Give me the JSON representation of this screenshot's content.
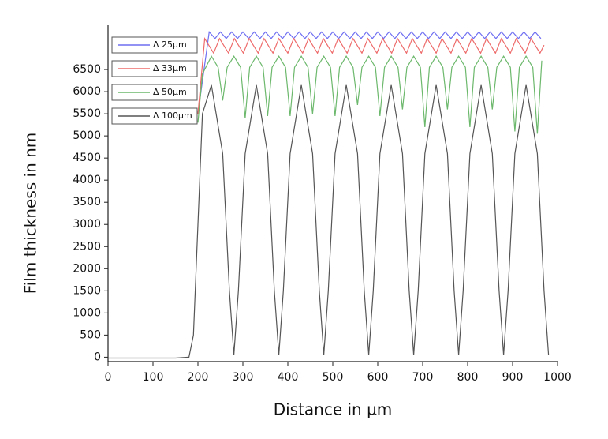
{
  "chart_data": {
    "type": "line",
    "xlabel": "Distance in µm",
    "ylabel": "Film thickness in nm",
    "xlim": [
      0,
      1000
    ],
    "xticks": [
      0,
      100,
      200,
      300,
      400,
      500,
      600,
      700,
      800,
      900,
      1000
    ],
    "ylim": [
      -100,
      7500
    ],
    "yticks": [
      0,
      500,
      1000,
      1500,
      2000,
      2500,
      3000,
      3500,
      4000,
      4500,
      5000,
      5500,
      6000,
      6500
    ],
    "legend": "upper left",
    "series": [
      {
        "name": "Δ 25µm",
        "color": "#6f6ff2",
        "x": [
          200,
          225,
          238,
          250,
          263,
          275,
          288,
          300,
          313,
          325,
          338,
          350,
          363,
          375,
          388,
          400,
          413,
          425,
          438,
          450,
          463,
          475,
          488,
          500,
          513,
          525,
          538,
          550,
          563,
          575,
          588,
          600,
          613,
          625,
          638,
          650,
          663,
          675,
          688,
          700,
          713,
          725,
          738,
          750,
          763,
          775,
          788,
          800,
          813,
          825,
          838,
          850,
          863,
          875,
          888,
          900,
          913,
          925,
          938,
          950,
          963
        ],
        "values": [
          5500,
          7350,
          7200,
          7350,
          7200,
          7350,
          7200,
          7350,
          7200,
          7350,
          7200,
          7350,
          7200,
          7350,
          7200,
          7350,
          7200,
          7350,
          7200,
          7350,
          7200,
          7350,
          7200,
          7350,
          7200,
          7350,
          7200,
          7350,
          7200,
          7350,
          7200,
          7350,
          7200,
          7350,
          7200,
          7350,
          7200,
          7350,
          7200,
          7350,
          7200,
          7350,
          7200,
          7350,
          7200,
          7350,
          7200,
          7350,
          7200,
          7350,
          7200,
          7350,
          7200,
          7350,
          7200,
          7350,
          7200,
          7350,
          7200,
          7350,
          7200
        ]
      },
      {
        "name": "Δ 33µm",
        "color": "#ee6a6a",
        "x": [
          200,
          215,
          235,
          248,
          268,
          281,
          301,
          314,
          334,
          347,
          367,
          380,
          400,
          413,
          433,
          446,
          466,
          479,
          499,
          512,
          532,
          545,
          565,
          578,
          598,
          611,
          631,
          644,
          664,
          677,
          697,
          710,
          730,
          743,
          763,
          776,
          796,
          809,
          829,
          842,
          862,
          875,
          895,
          908,
          928,
          941,
          961,
          970
        ],
        "values": [
          5500,
          7200,
          6870,
          7200,
          6870,
          7200,
          6870,
          7200,
          6870,
          7200,
          6870,
          7200,
          6870,
          7200,
          6870,
          7200,
          6870,
          7200,
          6870,
          7200,
          6870,
          7200,
          6870,
          7200,
          6870,
          7200,
          6870,
          7200,
          6870,
          7200,
          6870,
          7200,
          6870,
          7200,
          6870,
          7200,
          6870,
          7200,
          6870,
          7200,
          6870,
          7200,
          6870,
          7200,
          6870,
          7200,
          6870,
          7050
        ]
      },
      {
        "name": "Δ 50µm",
        "color": "#6cb86c",
        "x": [
          200,
          210,
          230,
          245,
          255,
          265,
          280,
          295,
          305,
          315,
          330,
          345,
          355,
          365,
          380,
          395,
          405,
          415,
          430,
          445,
          455,
          465,
          480,
          495,
          505,
          515,
          530,
          545,
          555,
          565,
          580,
          595,
          605,
          615,
          630,
          645,
          655,
          665,
          680,
          695,
          705,
          715,
          730,
          745,
          755,
          765,
          780,
          795,
          805,
          815,
          830,
          845,
          855,
          865,
          880,
          895,
          905,
          915,
          930,
          945,
          955,
          965
        ],
        "values": [
          5300,
          6400,
          6800,
          6550,
          5800,
          6550,
          6800,
          6550,
          5400,
          6550,
          6800,
          6550,
          5450,
          6550,
          6800,
          6550,
          5450,
          6550,
          6800,
          6550,
          5500,
          6550,
          6800,
          6550,
          5450,
          6550,
          6800,
          6550,
          5700,
          6550,
          6800,
          6550,
          5450,
          6550,
          6800,
          6550,
          5600,
          6550,
          6800,
          6550,
          5200,
          6550,
          6800,
          6550,
          5600,
          6550,
          6800,
          6550,
          5200,
          6550,
          6800,
          6550,
          5600,
          6550,
          6800,
          6550,
          5100,
          6550,
          6800,
          6550,
          5050,
          6700
        ]
      },
      {
        "name": "Δ 100µm",
        "color": "#555555",
        "x": [
          0,
          50,
          100,
          150,
          180,
          190,
          200,
          210,
          230,
          255,
          270,
          280,
          290,
          305,
          330,
          355,
          370,
          380,
          390,
          405,
          430,
          455,
          470,
          480,
          490,
          505,
          530,
          555,
          570,
          580,
          590,
          605,
          630,
          655,
          670,
          680,
          690,
          705,
          730,
          755,
          770,
          780,
          790,
          805,
          830,
          855,
          870,
          880,
          890,
          905,
          930,
          955,
          970,
          980
        ],
        "values": [
          -20,
          -20,
          -20,
          -20,
          0,
          500,
          3000,
          5500,
          6150,
          4600,
          1500,
          50,
          1500,
          4600,
          6150,
          4600,
          1500,
          50,
          1500,
          4600,
          6150,
          4600,
          1500,
          50,
          1500,
          4600,
          6150,
          4600,
          1500,
          50,
          1500,
          4600,
          6150,
          4600,
          1500,
          50,
          1500,
          4600,
          6150,
          4600,
          1500,
          50,
          1500,
          4600,
          6150,
          4600,
          1500,
          50,
          1500,
          4600,
          6150,
          4600,
          1500,
          50
        ]
      }
    ]
  }
}
